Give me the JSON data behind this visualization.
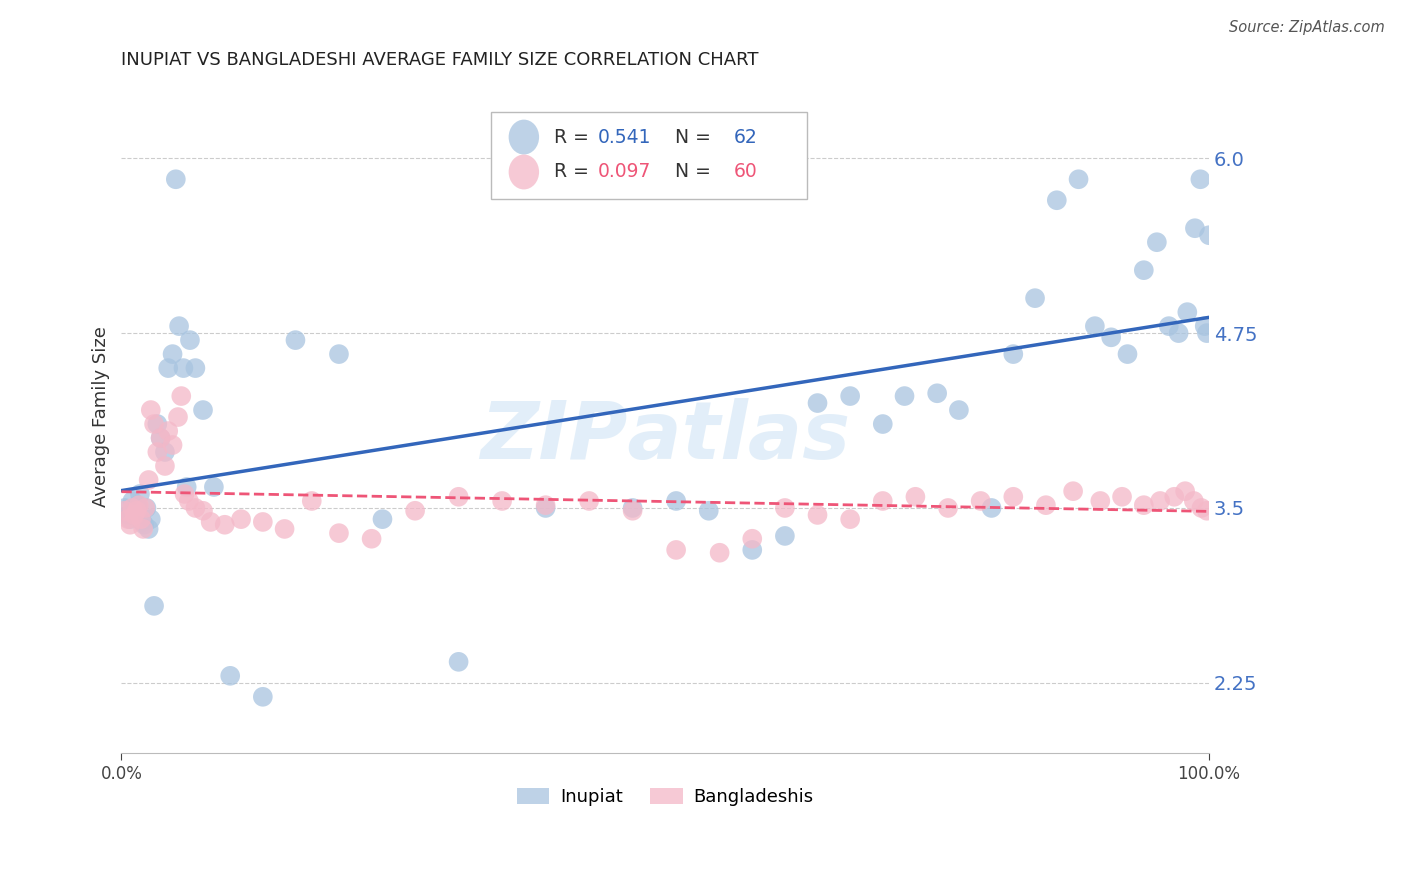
{
  "title": "INUPIAT VS BANGLADESHI AVERAGE FAMILY SIZE CORRELATION CHART",
  "source": "Source: ZipAtlas.com",
  "ylabel": "Average Family Size",
  "xlim": [
    0,
    1
  ],
  "ylim": [
    1.75,
    6.55
  ],
  "yticks": [
    2.25,
    3.5,
    4.75,
    6.0
  ],
  "xticklabels": [
    "0.0%",
    "100.0%"
  ],
  "yticklabels_color": "#4472C4",
  "background_color": "#ffffff",
  "grid_color": "#cccccc",
  "legend_R1": "0.541",
  "legend_N1": "62",
  "legend_R2": "0.097",
  "legend_N2": "60",
  "inupiat_color": "#a8c4e0",
  "bangladeshi_color": "#f4b8c8",
  "inupiat_line_color": "#3366BB",
  "bangladeshi_line_color": "#EE5577",
  "inupiat_x": [
    0.003,
    0.006,
    0.008,
    0.01,
    0.012,
    0.015,
    0.017,
    0.019,
    0.021,
    0.023,
    0.025,
    0.027,
    0.03,
    0.033,
    0.036,
    0.04,
    0.043,
    0.047,
    0.05,
    0.053,
    0.057,
    0.06,
    0.063,
    0.068,
    0.075,
    0.085,
    0.1,
    0.13,
    0.16,
    0.2,
    0.24,
    0.31,
    0.39,
    0.47,
    0.51,
    0.54,
    0.58,
    0.61,
    0.64,
    0.67,
    0.7,
    0.72,
    0.75,
    0.77,
    0.8,
    0.82,
    0.84,
    0.86,
    0.88,
    0.895,
    0.91,
    0.925,
    0.94,
    0.952,
    0.963,
    0.972,
    0.98,
    0.987,
    0.992,
    0.996,
    0.998,
    1.0
  ],
  "inupiat_y": [
    3.5,
    3.45,
    3.42,
    3.55,
    3.48,
    3.52,
    3.6,
    3.4,
    3.38,
    3.5,
    3.35,
    3.42,
    2.8,
    4.1,
    4.0,
    3.9,
    4.5,
    4.6,
    5.85,
    4.8,
    4.5,
    3.65,
    4.7,
    4.5,
    4.2,
    3.65,
    2.3,
    2.15,
    4.7,
    4.6,
    3.42,
    2.4,
    3.5,
    3.5,
    3.55,
    3.48,
    3.2,
    3.3,
    4.25,
    4.3,
    4.1,
    4.3,
    4.32,
    4.2,
    3.5,
    4.6,
    5.0,
    5.7,
    5.85,
    4.8,
    4.72,
    4.6,
    5.2,
    5.4,
    4.8,
    4.75,
    4.9,
    5.5,
    5.85,
    4.8,
    4.75,
    5.45
  ],
  "bangladeshi_x": [
    0.003,
    0.006,
    0.008,
    0.01,
    0.012,
    0.014,
    0.016,
    0.018,
    0.02,
    0.022,
    0.025,
    0.027,
    0.03,
    0.033,
    0.036,
    0.04,
    0.043,
    0.047,
    0.052,
    0.055,
    0.058,
    0.062,
    0.068,
    0.075,
    0.082,
    0.095,
    0.11,
    0.13,
    0.15,
    0.175,
    0.2,
    0.23,
    0.27,
    0.31,
    0.35,
    0.39,
    0.43,
    0.47,
    0.51,
    0.55,
    0.58,
    0.61,
    0.64,
    0.67,
    0.7,
    0.73,
    0.76,
    0.79,
    0.82,
    0.85,
    0.875,
    0.9,
    0.92,
    0.94,
    0.955,
    0.968,
    0.978,
    0.986,
    0.993,
    0.998
  ],
  "bangladeshi_y": [
    3.48,
    3.42,
    3.38,
    3.5,
    3.45,
    3.48,
    3.52,
    3.42,
    3.35,
    3.5,
    3.7,
    4.2,
    4.1,
    3.9,
    4.0,
    3.8,
    4.05,
    3.95,
    4.15,
    4.3,
    3.6,
    3.55,
    3.5,
    3.48,
    3.4,
    3.38,
    3.42,
    3.4,
    3.35,
    3.55,
    3.32,
    3.28,
    3.48,
    3.58,
    3.55,
    3.52,
    3.55,
    3.48,
    3.2,
    3.18,
    3.28,
    3.5,
    3.45,
    3.42,
    3.55,
    3.58,
    3.5,
    3.55,
    3.58,
    3.52,
    3.62,
    3.55,
    3.58,
    3.52,
    3.55,
    3.58,
    3.62,
    3.55,
    3.5,
    3.48
  ]
}
